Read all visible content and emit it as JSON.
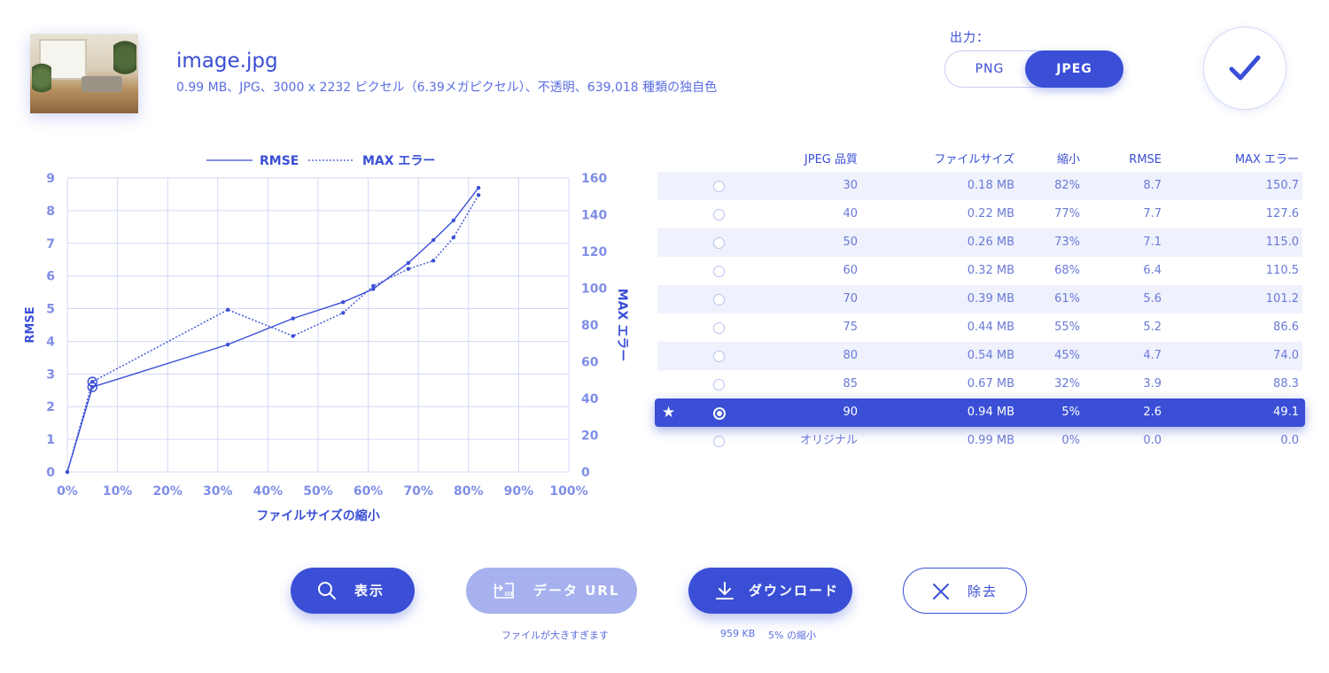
{
  "file": {
    "name": "image.jpg",
    "info": "0.99 MB、JPG、3000 x 2232 ピクセル（6.39メガピクセル）、不透明、639,018 種類の独自色"
  },
  "output": {
    "label": "出力：",
    "options": [
      "PNG",
      "JPEG"
    ],
    "selected": "JPEG"
  },
  "table": {
    "headers": [
      "JPEG 品質",
      "ファイルサイズ",
      "縮小",
      "RMSE",
      "MAX エラー"
    ],
    "rows": [
      {
        "quality": "30",
        "size": "0.18 MB",
        "reduction": "82%",
        "rmse": "8.7",
        "max": "150.7",
        "selected": false
      },
      {
        "quality": "40",
        "size": "0.22 MB",
        "reduction": "77%",
        "rmse": "7.7",
        "max": "127.6",
        "selected": false
      },
      {
        "quality": "50",
        "size": "0.26 MB",
        "reduction": "73%",
        "rmse": "7.1",
        "max": "115.0",
        "selected": false
      },
      {
        "quality": "60",
        "size": "0.32 MB",
        "reduction": "68%",
        "rmse": "6.4",
        "max": "110.5",
        "selected": false
      },
      {
        "quality": "70",
        "size": "0.39 MB",
        "reduction": "61%",
        "rmse": "5.6",
        "max": "101.2",
        "selected": false
      },
      {
        "quality": "75",
        "size": "0.44 MB",
        "reduction": "55%",
        "rmse": "5.2",
        "max": "86.6",
        "selected": false
      },
      {
        "quality": "80",
        "size": "0.54 MB",
        "reduction": "45%",
        "rmse": "4.7",
        "max": "74.0",
        "selected": false
      },
      {
        "quality": "85",
        "size": "0.67 MB",
        "reduction": "32%",
        "rmse": "3.9",
        "max": "88.3",
        "selected": false
      },
      {
        "quality": "90",
        "size": "0.94 MB",
        "reduction": "5%",
        "rmse": "2.6",
        "max": "49.1",
        "selected": true
      },
      {
        "quality": "オリジナル",
        "size": "0.99 MB",
        "reduction": "0%",
        "rmse": "0.0",
        "max": "0.0",
        "selected": false
      }
    ]
  },
  "buttons": {
    "show": "表示",
    "data_url": "データ URL",
    "download": "ダウンロード",
    "remove": "除去"
  },
  "subtexts": {
    "data_url_note": "ファイルが大きすぎます",
    "download_size": "959 KB",
    "download_reduction": "5% の縮小"
  },
  "icons": {
    "show": "search-icon",
    "data_url": "data-url-icon",
    "download": "download-icon",
    "remove": "close-icon",
    "confirm": "checkmark-icon",
    "best": "star-icon"
  },
  "colors": {
    "accent": "#3a4fd6",
    "accent_light": "#a6b1ee",
    "grid": "#d3d8f6",
    "row_alt": "#eff1fc"
  },
  "chart_data": {
    "type": "line",
    "xlabel": "ファイルサイズの縮小",
    "ylabel": "RMSE",
    "y2label": "MAX エラー",
    "xlim": [
      0,
      100
    ],
    "ylim": [
      0,
      9
    ],
    "y2lim": [
      0,
      160
    ],
    "x_ticks": [
      "0%",
      "10%",
      "20%",
      "30%",
      "40%",
      "50%",
      "60%",
      "70%",
      "80%",
      "90%",
      "100%"
    ],
    "y_ticks": [
      "0",
      "1",
      "2",
      "3",
      "4",
      "5",
      "6",
      "7",
      "8",
      "9"
    ],
    "y2_ticks": [
      "0",
      "20",
      "40",
      "60",
      "80",
      "100",
      "120",
      "140",
      "160"
    ],
    "legend_position": "top",
    "grid": true,
    "series": [
      {
        "name": "RMSE",
        "axis": "left",
        "style": "solid",
        "x": [
          0,
          5,
          32,
          45,
          55,
          61,
          68,
          73,
          77,
          82
        ],
        "y": [
          0.0,
          2.6,
          3.9,
          4.7,
          5.2,
          5.6,
          6.4,
          7.1,
          7.7,
          8.7
        ]
      },
      {
        "name": "MAX エラー",
        "axis": "right",
        "style": "dotted",
        "x": [
          0,
          5,
          32,
          45,
          55,
          61,
          68,
          73,
          77,
          82
        ],
        "y": [
          0.0,
          49.1,
          88.3,
          74.0,
          86.6,
          101.2,
          110.5,
          115.0,
          127.6,
          150.7
        ]
      }
    ],
    "highlight_x": 5
  }
}
